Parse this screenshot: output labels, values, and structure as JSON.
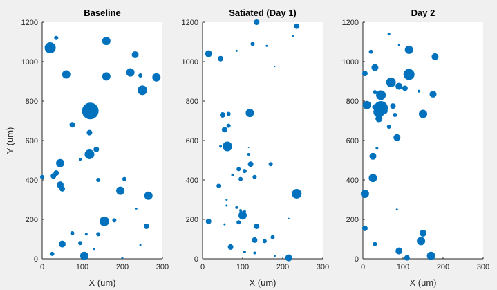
{
  "chart_data": [
    {
      "type": "scatter",
      "title": "Baseline",
      "xlabel": "X (um)",
      "ylabel": "Y (um)",
      "xlim": [
        0,
        300
      ],
      "ylim": [
        0,
        1200
      ],
      "xticks": [
        "0",
        "100",
        "200",
        "300"
      ],
      "yticks": [
        "0",
        "200",
        "400",
        "600",
        "800",
        "1000",
        "1200"
      ],
      "marker_color": "#0072bd",
      "points": [
        {
          "x": 20,
          "y": 1070,
          "r": 8
        },
        {
          "x": 35,
          "y": 1120,
          "r": 3
        },
        {
          "x": 160,
          "y": 1105,
          "r": 6
        },
        {
          "x": 232,
          "y": 1035,
          "r": 5
        },
        {
          "x": 60,
          "y": 935,
          "r": 6
        },
        {
          "x": 160,
          "y": 925,
          "r": 6
        },
        {
          "x": 220,
          "y": 945,
          "r": 6
        },
        {
          "x": 245,
          "y": 930,
          "r": 3
        },
        {
          "x": 285,
          "y": 920,
          "r": 6
        },
        {
          "x": 250,
          "y": 855,
          "r": 7
        },
        {
          "x": 120,
          "y": 750,
          "r": 12
        },
        {
          "x": 75,
          "y": 680,
          "r": 4
        },
        {
          "x": 118,
          "y": 640,
          "r": 4
        },
        {
          "x": 118,
          "y": 530,
          "r": 7
        },
        {
          "x": 135,
          "y": 555,
          "r": 4
        },
        {
          "x": 95,
          "y": 505,
          "r": 2
        },
        {
          "x": 45,
          "y": 485,
          "r": 6
        },
        {
          "x": 35,
          "y": 435,
          "r": 4
        },
        {
          "x": 28,
          "y": 420,
          "r": 4
        },
        {
          "x": 45,
          "y": 375,
          "r": 5
        },
        {
          "x": 50,
          "y": 355,
          "r": 4
        },
        {
          "x": 0,
          "y": 415,
          "r": 3
        },
        {
          "x": 140,
          "y": 400,
          "r": 3
        },
        {
          "x": 205,
          "y": 405,
          "r": 3
        },
        {
          "x": 195,
          "y": 345,
          "r": 6
        },
        {
          "x": 265,
          "y": 320,
          "r": 6
        },
        {
          "x": 235,
          "y": 255,
          "r": 1.5
        },
        {
          "x": 155,
          "y": 190,
          "r": 7
        },
        {
          "x": 180,
          "y": 195,
          "r": 3
        },
        {
          "x": 260,
          "y": 165,
          "r": 4
        },
        {
          "x": 75,
          "y": 130,
          "r": 3
        },
        {
          "x": 110,
          "y": 125,
          "r": 2
        },
        {
          "x": 140,
          "y": 125,
          "r": 3
        },
        {
          "x": 50,
          "y": 75,
          "r": 5
        },
        {
          "x": 95,
          "y": 80,
          "r": 3
        },
        {
          "x": 245,
          "y": 70,
          "r": 1.5
        },
        {
          "x": 130,
          "y": 50,
          "r": 1.5
        },
        {
          "x": 25,
          "y": 25,
          "r": 3
        },
        {
          "x": 105,
          "y": 15,
          "r": 6
        },
        {
          "x": 200,
          "y": 5,
          "r": 1.5
        }
      ]
    },
    {
      "type": "scatter",
      "title": "Satiated (Day 1)",
      "xlabel": "X (um)",
      "ylabel": "",
      "xlim": [
        0,
        300
      ],
      "ylim": [
        0,
        1200
      ],
      "xticks": [
        "0",
        "100",
        "200",
        "300"
      ],
      "yticks": [
        "0",
        "200",
        "400",
        "600",
        "800",
        "1000",
        "1200"
      ],
      "marker_color": "#0072bd",
      "points": [
        {
          "x": 135,
          "y": 1200,
          "r": 4
        },
        {
          "x": 235,
          "y": 1180,
          "r": 4
        },
        {
          "x": 15,
          "y": 1040,
          "r": 5
        },
        {
          "x": 45,
          "y": 1015,
          "r": 4
        },
        {
          "x": 85,
          "y": 1055,
          "r": 1.5
        },
        {
          "x": 125,
          "y": 1090,
          "r": 3
        },
        {
          "x": 160,
          "y": 1080,
          "r": 1.5
        },
        {
          "x": 225,
          "y": 1130,
          "r": 1.5
        },
        {
          "x": 180,
          "y": 975,
          "r": 1
        },
        {
          "x": 50,
          "y": 730,
          "r": 4
        },
        {
          "x": 65,
          "y": 735,
          "r": 3
        },
        {
          "x": 118,
          "y": 740,
          "r": 6
        },
        {
          "x": 55,
          "y": 655,
          "r": 4
        },
        {
          "x": 65,
          "y": 675,
          "r": 3
        },
        {
          "x": 45,
          "y": 570,
          "r": 2
        },
        {
          "x": 62,
          "y": 570,
          "r": 7
        },
        {
          "x": 115,
          "y": 565,
          "r": 1
        },
        {
          "x": 115,
          "y": 530,
          "r": 2
        },
        {
          "x": 120,
          "y": 480,
          "r": 4
        },
        {
          "x": 170,
          "y": 480,
          "r": 3
        },
        {
          "x": 90,
          "y": 455,
          "r": 3
        },
        {
          "x": 105,
          "y": 445,
          "r": 3
        },
        {
          "x": 75,
          "y": 425,
          "r": 2
        },
        {
          "x": 95,
          "y": 405,
          "r": 3
        },
        {
          "x": 130,
          "y": 415,
          "r": 3
        },
        {
          "x": 40,
          "y": 370,
          "r": 3
        },
        {
          "x": 235,
          "y": 330,
          "r": 7
        },
        {
          "x": 60,
          "y": 300,
          "r": 1.5
        },
        {
          "x": 60,
          "y": 270,
          "r": 1.5
        },
        {
          "x": 85,
          "y": 260,
          "r": 2
        },
        {
          "x": 95,
          "y": 245,
          "r": 2
        },
        {
          "x": 105,
          "y": 240,
          "r": 2
        },
        {
          "x": 100,
          "y": 220,
          "r": 6
        },
        {
          "x": 90,
          "y": 185,
          "r": 3
        },
        {
          "x": 15,
          "y": 190,
          "r": 4
        },
        {
          "x": 55,
          "y": 175,
          "r": 1.5
        },
        {
          "x": 215,
          "y": 205,
          "r": 1
        },
        {
          "x": 135,
          "y": 165,
          "r": 4
        },
        {
          "x": 130,
          "y": 95,
          "r": 4
        },
        {
          "x": 155,
          "y": 90,
          "r": 3
        },
        {
          "x": 175,
          "y": 110,
          "r": 3
        },
        {
          "x": 70,
          "y": 60,
          "r": 4
        },
        {
          "x": 105,
          "y": 35,
          "r": 2
        },
        {
          "x": 130,
          "y": 30,
          "r": 2
        },
        {
          "x": 180,
          "y": 15,
          "r": 1.5
        },
        {
          "x": 215,
          "y": 5,
          "r": 5
        }
      ]
    },
    {
      "type": "scatter",
      "title": "Day 2",
      "xlabel": "X (um)",
      "ylabel": "",
      "xlim": [
        0,
        300
      ],
      "ylim": [
        0,
        1200
      ],
      "xticks": [
        "0",
        "100",
        "200",
        "300"
      ],
      "yticks": [
        "0",
        "200",
        "400",
        "600",
        "800",
        "1000",
        "1200"
      ],
      "marker_color": "#0072bd",
      "points": [
        {
          "x": 65,
          "y": 1140,
          "r": 2
        },
        {
          "x": 90,
          "y": 1085,
          "r": 1.5
        },
        {
          "x": 115,
          "y": 1060,
          "r": 6
        },
        {
          "x": 180,
          "y": 1025,
          "r": 5
        },
        {
          "x": 20,
          "y": 1050,
          "r": 3
        },
        {
          "x": 5,
          "y": 940,
          "r": 4
        },
        {
          "x": 30,
          "y": 970,
          "r": 5
        },
        {
          "x": 115,
          "y": 935,
          "r": 8
        },
        {
          "x": 70,
          "y": 895,
          "r": 7
        },
        {
          "x": 90,
          "y": 875,
          "r": 5
        },
        {
          "x": 105,
          "y": 865,
          "r": 4
        },
        {
          "x": 45,
          "y": 830,
          "r": 7
        },
        {
          "x": 30,
          "y": 845,
          "r": 3
        },
        {
          "x": 140,
          "y": 850,
          "r": 2
        },
        {
          "x": 175,
          "y": 835,
          "r": 5
        },
        {
          "x": 10,
          "y": 780,
          "r": 6
        },
        {
          "x": 30,
          "y": 770,
          "r": 4
        },
        {
          "x": 45,
          "y": 765,
          "r": 10
        },
        {
          "x": 40,
          "y": 745,
          "r": 8
        },
        {
          "x": 55,
          "y": 750,
          "r": 4
        },
        {
          "x": 75,
          "y": 775,
          "r": 4
        },
        {
          "x": 150,
          "y": 735,
          "r": 6
        },
        {
          "x": 80,
          "y": 730,
          "r": 3
        },
        {
          "x": 40,
          "y": 710,
          "r": 5
        },
        {
          "x": 65,
          "y": 670,
          "r": 3
        },
        {
          "x": 85,
          "y": 615,
          "r": 5
        },
        {
          "x": 35,
          "y": 560,
          "r": 2
        },
        {
          "x": 25,
          "y": 520,
          "r": 5
        },
        {
          "x": 25,
          "y": 410,
          "r": 6
        },
        {
          "x": 5,
          "y": 330,
          "r": 6
        },
        {
          "x": 85,
          "y": 250,
          "r": 1.5
        },
        {
          "x": 5,
          "y": 155,
          "r": 4
        },
        {
          "x": 150,
          "y": 130,
          "r": 5
        },
        {
          "x": 145,
          "y": 90,
          "r": 6
        },
        {
          "x": 30,
          "y": 75,
          "r": 3
        },
        {
          "x": 90,
          "y": 40,
          "r": 5
        },
        {
          "x": 170,
          "y": 15,
          "r": 6
        },
        {
          "x": 110,
          "y": 5,
          "r": 4
        }
      ]
    }
  ]
}
